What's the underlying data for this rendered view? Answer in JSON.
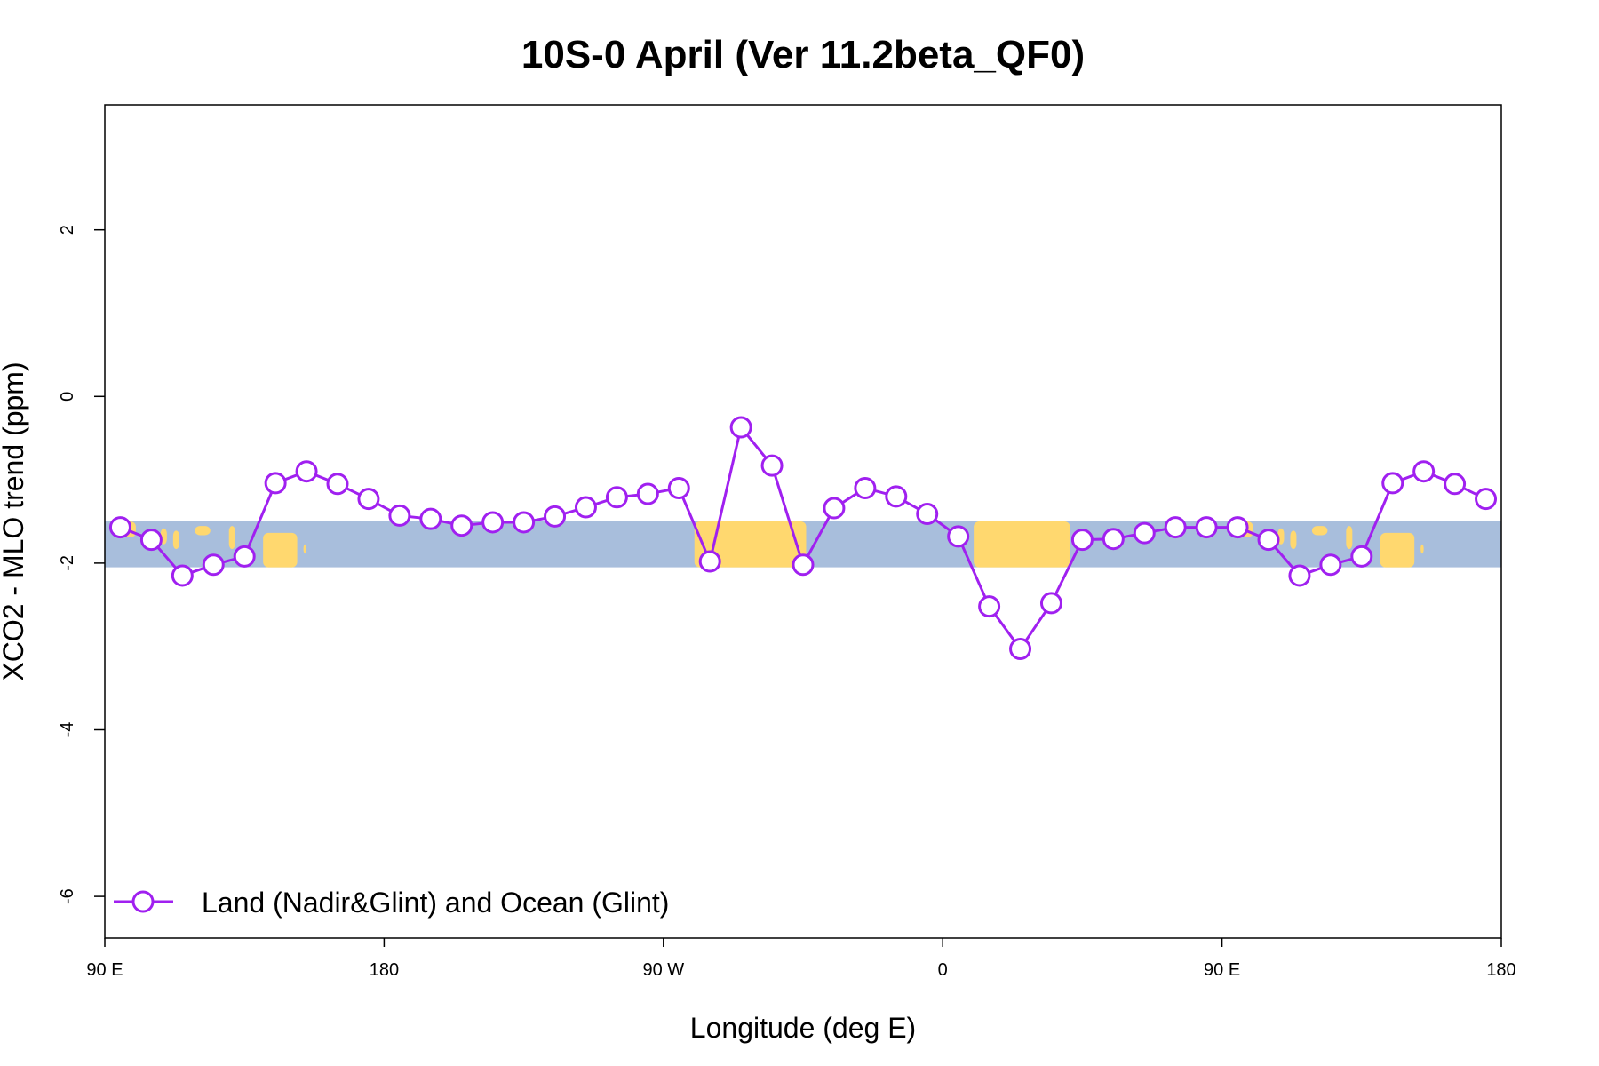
{
  "chart_data": {
    "type": "line",
    "title": "10S-0 April (Ver 11.2beta_QF0)",
    "xlabel": "Longitude (deg E)",
    "ylabel": "XCO2 - MLO trend (ppm)",
    "xlim": [
      90,
      540
    ],
    "ylim": [
      -6.5,
      3.5
    ],
    "x_ticks": [
      {
        "value": 90,
        "label": "90 E"
      },
      {
        "value": 180,
        "label": "180"
      },
      {
        "value": 270,
        "label": "90 W"
      },
      {
        "value": 360,
        "label": "0"
      },
      {
        "value": 450,
        "label": "90 E"
      },
      {
        "value": 540,
        "label": "180"
      }
    ],
    "y_ticks": [
      {
        "value": 2,
        "label": "2"
      },
      {
        "value": 0,
        "label": "0"
      },
      {
        "value": -2,
        "label": "-2"
      },
      {
        "value": -4,
        "label": "-4"
      },
      {
        "value": -6,
        "label": "-6"
      }
    ],
    "map_band": {
      "y_min": -2.05,
      "y_max": -1.5,
      "ocean_color": "#a8bedc",
      "land_color": "#ffd86f"
    },
    "legend_position": "bottom-left",
    "series": [
      {
        "name": "Land (Nadir&Glint) and Ocean (Glint)",
        "color": "#a020f0",
        "x": [
          95,
          105,
          115,
          125,
          135,
          145,
          155,
          165,
          175,
          185,
          195,
          205,
          215,
          225,
          235,
          245,
          255,
          265,
          275,
          285,
          295,
          305,
          315,
          325,
          335,
          345,
          355,
          365,
          375,
          385,
          395,
          405,
          415,
          425,
          435,
          445,
          455,
          465,
          475,
          485,
          495,
          505,
          515,
          525,
          535
        ],
        "y": [
          -1.57,
          -1.72,
          -2.15,
          -2.02,
          -1.92,
          -1.04,
          -0.9,
          -1.05,
          -1.23,
          -1.43,
          -1.47,
          -1.55,
          -1.51,
          -1.51,
          -1.44,
          -1.33,
          -1.21,
          -1.17,
          -1.1,
          -1.98,
          -0.37,
          -0.83,
          -2.02,
          -1.34,
          -1.1,
          -1.2,
          -1.41,
          -1.68,
          -2.52,
          -3.03,
          -2.48,
          -1.72,
          -1.71,
          -1.64,
          -1.57,
          -1.57,
          -1.57,
          -1.72,
          -2.15,
          -2.02,
          -1.92,
          -1.04,
          -0.9,
          -1.05,
          -1.23
        ]
      }
    ]
  }
}
